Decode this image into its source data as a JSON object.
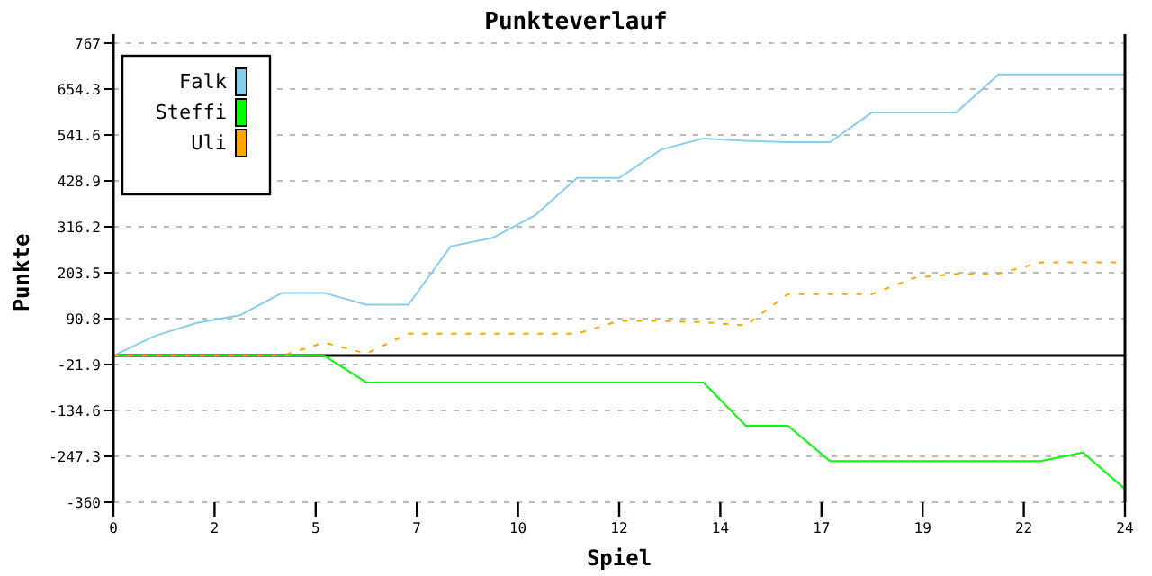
{
  "chart_data": {
    "type": "line",
    "title": "Punkteverlauf",
    "xlabel": "Spiel",
    "ylabel": "Punkte",
    "x": [
      0,
      1,
      2,
      3,
      4,
      5,
      6,
      7,
      8,
      9,
      10,
      11,
      12,
      13,
      14,
      15,
      16,
      17,
      18,
      19,
      20,
      21,
      22,
      23,
      24
    ],
    "series": [
      {
        "name": "Falk",
        "color": "#87ceeb",
        "values": [
          0,
          49,
          81,
          99,
          154,
          154,
          125,
          125,
          268,
          289,
          344,
          436,
          436,
          506,
          533,
          527,
          524,
          524,
          597,
          597,
          597,
          690,
          690,
          690,
          690
        ]
      },
      {
        "name": "Steffi",
        "color": "#00ff00",
        "values": [
          0,
          0,
          0,
          0,
          0,
          0,
          -66,
          -66,
          -66,
          -66,
          -66,
          -66,
          -66,
          -66,
          -66,
          -172,
          -172,
          -259,
          -259,
          -259,
          -259,
          -259,
          -259,
          -238,
          -328
        ]
      },
      {
        "name": "Uli",
        "color": "#ffa500",
        "line_style": "dashed",
        "values": [
          0,
          0,
          0,
          0,
          0,
          32,
          5,
          54,
          54,
          54,
          54,
          54,
          85,
          85,
          82,
          74,
          151,
          151,
          151,
          191,
          201,
          201,
          229,
          229,
          229
        ]
      }
    ],
    "xlim": [
      0,
      24
    ],
    "xticks": [
      0,
      {
        "value": 2.4,
        "label": "2"
      },
      {
        "value": 4.8,
        "label": "5"
      },
      {
        "value": 7.2,
        "label": "7"
      },
      {
        "value": 9.6,
        "label": "10"
      },
      {
        "value": 12,
        "label": "12"
      },
      {
        "value": 14.4,
        "label": "14"
      },
      {
        "value": 16.8,
        "label": "17"
      },
      {
        "value": 19.2,
        "label": "19"
      },
      {
        "value": 21.6,
        "label": "22"
      },
      24
    ],
    "ylim": [
      -360,
      767
    ],
    "yticks": [
      -360,
      -247.3,
      -134.6,
      -21.9,
      90.8,
      203.5,
      316.2,
      428.9,
      541.6,
      654.3,
      767
    ],
    "grid": "y",
    "legend": "top left",
    "ref_lines": [
      {
        "axis": "y",
        "value": 0,
        "color": "#000000"
      }
    ]
  }
}
